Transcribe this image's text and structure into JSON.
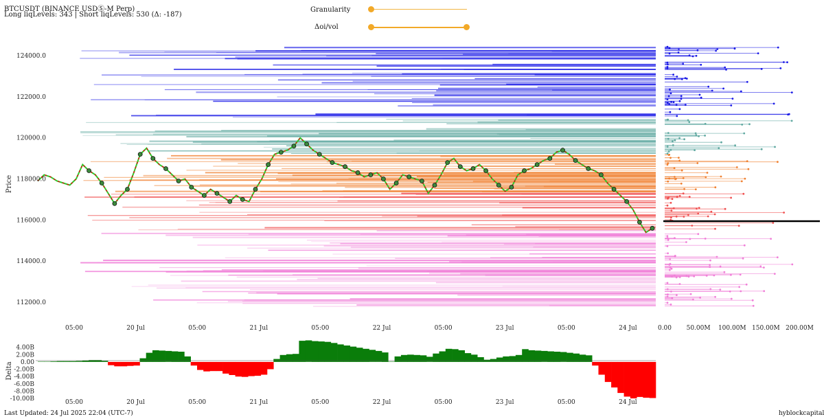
{
  "header": {
    "title": "BTCUSDT (BINANCE USDⓈ-M Perp)",
    "subtitle": "Long liqLevels: 343 | Short liqLevels: 530 (Δ: -187)"
  },
  "controls": {
    "granularity": {
      "label": "Granularity",
      "value": 0.0
    },
    "oi_vol": {
      "label": "Δoi/vol",
      "low": 0.0,
      "high": 1.0
    }
  },
  "footer": {
    "last_updated": "Last Updated: 24 Jul 2025 22:04 (UTC-7)",
    "brand": "hyblockcapital.com"
  },
  "colors": {
    "short_levels": "#1a1ae6",
    "mid_levels": "#5fa8a0",
    "long_levels_orange": "#f08030",
    "long_levels_red": "#f05050",
    "long_levels_pink": "#f080d8",
    "price_line": "#2ecc2e",
    "delta_positive": "#0a7d0a",
    "delta_negative": "#ff0000",
    "current_price_marker": "#000000"
  },
  "chart_data": [
    {
      "type": "line",
      "title": "",
      "ylabel": "Price",
      "ylim": [
        111000,
        124700
      ],
      "yticks": [
        "124000.0",
        "122000.0",
        "120000.0",
        "118000.0",
        "116000.0",
        "114000.0",
        "112000.0"
      ],
      "xticks": [
        "05:00",
        "20 Jul",
        "05:00",
        "21 Jul",
        "05:00",
        "22 Jul",
        "05:00",
        "23 Jul",
        "05:00",
        "24 Jul"
      ],
      "series": [
        {
          "values": [
            117900,
            118200,
            118100,
            117900,
            117800,
            117700,
            118000,
            118700,
            118400,
            118200,
            117800,
            117300,
            116800,
            117200,
            117500,
            118300,
            119200,
            119500,
            119000,
            118700,
            118500,
            118200,
            117900,
            118000,
            117600,
            117400,
            117200,
            117500,
            117300,
            117100,
            116900,
            117200,
            117000,
            116900,
            117500,
            118000,
            118700,
            119200,
            119300,
            119400,
            119600,
            120000,
            119700,
            119400,
            119200,
            119000,
            118800,
            118700,
            118600,
            118400,
            118300,
            118100,
            118200,
            118300,
            118000,
            117500,
            117800,
            118200,
            118100,
            118000,
            117900,
            117300,
            117700,
            118200,
            118800,
            119000,
            118600,
            118400,
            118500,
            118700,
            118400,
            118000,
            117700,
            117400,
            117600,
            118200,
            118400,
            118500,
            118700,
            118900,
            119000,
            119300,
            119400,
            119200,
            118900,
            118700,
            118500,
            118400,
            118200,
            117800,
            117500,
            117200,
            116900,
            116500,
            115900,
            115400,
            115600
          ]
        }
      ],
      "current_price": 116000,
      "level_groups": [
        {
          "name": "Short liqLevels",
          "range": [
            119500,
            124500
          ]
        },
        {
          "name": "Long liqLevels",
          "range": [
            111500,
            117500
          ]
        }
      ]
    },
    {
      "type": "bar",
      "title": "",
      "xlabel": "",
      "xticks": [
        "0.00",
        "50.00M",
        "100.00M",
        "150.00M",
        "200.00M"
      ],
      "xlim": [
        0,
        230000000
      ],
      "note": "liquidation level size distribution by price"
    },
    {
      "type": "area",
      "ylabel": "Delta",
      "ylim": [
        -10000000000,
        6000000000
      ],
      "yticks": [
        "4.00B",
        "2.00B",
        "0.00",
        "-2.00B",
        "-4.00B",
        "-6.00B",
        "-8.00B",
        "-10.00B"
      ],
      "xticks": [
        "05:00",
        "20 Jul",
        "05:00",
        "21 Jul",
        "05:00",
        "22 Jul",
        "05:00",
        "23 Jul",
        "05:00",
        "24 Jul"
      ],
      "values": [
        0.1,
        0.1,
        0.15,
        0.2,
        0.2,
        0.2,
        0.25,
        0.4,
        0.5,
        0.5,
        0.3,
        -0.9,
        -1.2,
        -1.2,
        -1.1,
        -1.0,
        1.0,
        2.5,
        3.2,
        3.1,
        3.0,
        2.9,
        2.8,
        1.5,
        -1.0,
        -2.2,
        -2.6,
        -2.5,
        -2.5,
        -3.2,
        -3.6,
        -4.0,
        -4.1,
        -3.9,
        -3.8,
        -3.5,
        -2.0,
        0.8,
        1.9,
        2.1,
        2.2,
        5.8,
        5.9,
        5.7,
        5.6,
        5.5,
        5.2,
        4.8,
        4.5,
        4.2,
        3.9,
        3.6,
        3.3,
        3.0,
        2.6,
        0.1,
        1.5,
        1.9,
        2.0,
        1.9,
        1.8,
        1.4,
        2.3,
        2.9,
        3.6,
        3.5,
        3.2,
        2.4,
        2.0,
        1.3,
        0.6,
        0.8,
        1.2,
        1.5,
        1.6,
        1.9,
        3.5,
        3.2,
        3.1,
        3.0,
        2.9,
        2.8,
        2.7,
        2.5,
        2.3,
        2.0,
        1.8,
        -1.0,
        -3.5,
        -5.5,
        -7.0,
        -8.5,
        -9.5,
        -10.0,
        -9.6,
        -9.8,
        -9.9
      ]
    }
  ]
}
